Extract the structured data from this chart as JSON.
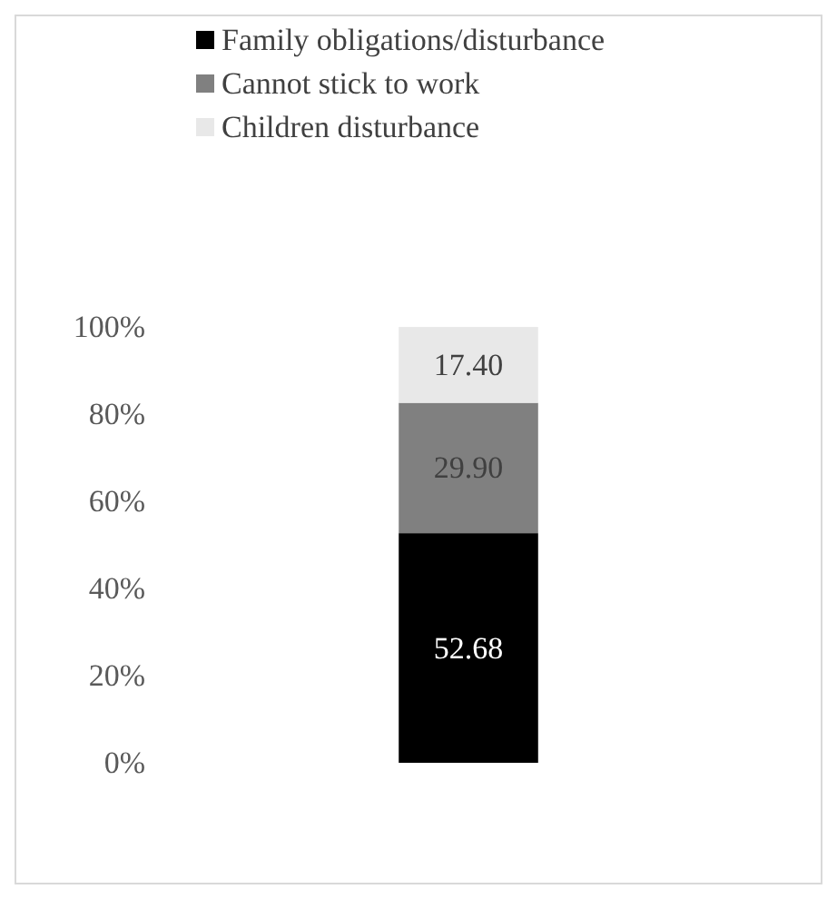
{
  "chart_data": {
    "type": "bar",
    "stacked": true,
    "categories": [
      null
    ],
    "series": [
      {
        "name": "Family obligations/disturbance",
        "color": "#000000",
        "values": [
          52.68
        ],
        "value_labels": [
          "52.68"
        ]
      },
      {
        "name": "Cannot stick to work",
        "color": "#808080",
        "values": [
          29.9
        ],
        "value_labels": [
          "29.90"
        ]
      },
      {
        "name": "Children disturbance",
        "color": "#e8e8e8",
        "values": [
          17.4
        ],
        "value_labels": [
          "17.40"
        ]
      }
    ],
    "ylim": [
      0,
      100
    ],
    "yticks": [
      {
        "value": 0,
        "label": "0%"
      },
      {
        "value": 20,
        "label": "20%"
      },
      {
        "value": 40,
        "label": "40%"
      },
      {
        "value": 60,
        "label": "60%"
      },
      {
        "value": 80,
        "label": "80%"
      },
      {
        "value": 100,
        "label": "100%"
      }
    ],
    "grid": false,
    "legend": "top"
  }
}
